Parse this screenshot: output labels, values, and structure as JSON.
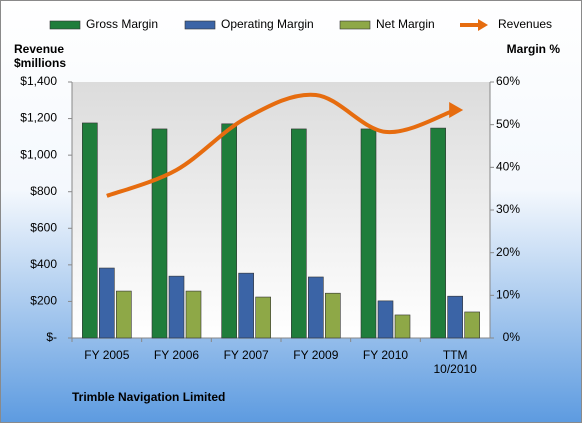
{
  "chart_data": {
    "type": "bar",
    "title": "Trimble Navigation Limited",
    "y_label": "Revenue\n$millions",
    "y2_label": "Margin %",
    "categories": [
      "FY 2005",
      "FY 2006",
      "FY 2007",
      "FY 2009",
      "FY 2010",
      "TTM\n10/2010"
    ],
    "series": [
      {
        "name": "Gross Margin",
        "color": "#1f7d3b",
        "axis": "y2",
        "type": "bar",
        "values": [
          50.4,
          49.0,
          50.2,
          49.0,
          49.0,
          49.2
        ]
      },
      {
        "name": "Operating Margin",
        "color": "#3b64a6",
        "axis": "y2",
        "type": "bar",
        "values": [
          16.4,
          14.5,
          15.2,
          14.3,
          8.7,
          9.8
        ]
      },
      {
        "name": "Net Margin",
        "color": "#8ea847",
        "axis": "y2",
        "type": "bar",
        "values": [
          11.0,
          11.0,
          9.6,
          10.5,
          5.4,
          6.1
        ]
      },
      {
        "name": "Revenues",
        "color": "#e66c0f",
        "axis": "y",
        "type": "line",
        "values": [
          777,
          919,
          1203,
          1329,
          1127,
          1247
        ]
      }
    ],
    "ylim": [
      0,
      1400
    ],
    "yticks": [
      {
        "value": 0,
        "label": "$-"
      },
      {
        "value": 200,
        "label": "$200"
      },
      {
        "value": 400,
        "label": "$400"
      },
      {
        "value": 600,
        "label": "$600"
      },
      {
        "value": 800,
        "label": "$800"
      },
      {
        "value": 1000,
        "label": "$1,000"
      },
      {
        "value": 1200,
        "label": "$1,200"
      },
      {
        "value": 1400,
        "label": "$1,400"
      }
    ],
    "y2lim": [
      0,
      60
    ],
    "y2ticks": [
      {
        "value": 0,
        "label": "0%"
      },
      {
        "value": 10,
        "label": "10%"
      },
      {
        "value": 20,
        "label": "20%"
      },
      {
        "value": 30,
        "label": "30%"
      },
      {
        "value": 40,
        "label": "40%"
      },
      {
        "value": 50,
        "label": "50%"
      },
      {
        "value": 60,
        "label": "60%"
      }
    ],
    "grid": false
  }
}
